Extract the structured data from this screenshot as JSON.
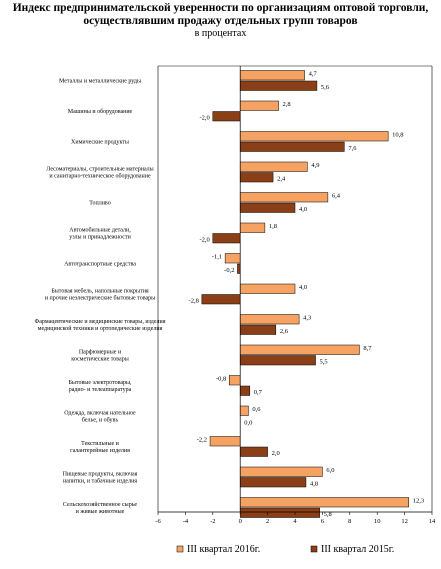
{
  "chart_data": {
    "type": "bar",
    "orientation": "horizontal",
    "title": "Индекс предпринимательской уверенности по организациям оптовой торговли, осуществлявшим продажу отдельных групп товаров",
    "subtitle": "в процентах",
    "categories": [
      [
        "Металлы и металлические руды"
      ],
      [
        "Машины и оборудование"
      ],
      [
        "Химические продукты"
      ],
      [
        "Лесоматериалы, строительные материалы",
        "и санитарно-техническое оборудование"
      ],
      [
        "Топливо"
      ],
      [
        "Автомобильные детали,",
        "узлы и принадлежности"
      ],
      [
        "Автотранспортные средства"
      ],
      [
        "Бытовая мебель, напольные покрытия",
        "и прочие неэлектрические бытовые товары"
      ],
      [
        "Фармацевтические и медицинские товары, изделия",
        "медицинской техники и ортопедические изделия"
      ],
      [
        "Парфюмерные и",
        "косметические товары"
      ],
      [
        "Бытовые электротовары,",
        "радио- и телеаппаратура"
      ],
      [
        "Одежда, включая нательное",
        "белье, и обувь"
      ],
      [
        "Текстильные и",
        "галантерейные изделия"
      ],
      [
        "Пищевые продукты, включая",
        "напитки, и табачные изделия"
      ],
      [
        "Сельскохозяйственное сырье",
        "и живые животные"
      ]
    ],
    "series": [
      {
        "name": "III квартал 2016г.",
        "color": "#f5a263",
        "values": [
          4.7,
          2.8,
          10.8,
          4.9,
          6.4,
          1.8,
          -1.1,
          4.0,
          4.3,
          8.7,
          -0.8,
          0.6,
          -2.2,
          6.0,
          12.3
        ]
      },
      {
        "name": "III квартал 2015г.",
        "color": "#8b3f17",
        "values": [
          5.6,
          -2.0,
          7.6,
          2.4,
          4.0,
          -2.0,
          -0.2,
          -2.8,
          2.6,
          5.5,
          0.7,
          0.0,
          2.0,
          4.8,
          5.8
        ]
      }
    ],
    "value_labels": [
      [
        "4,7",
        "2,8",
        "10,8",
        "4,9",
        "6,4",
        "1,8",
        "-1,1",
        "4,0",
        "4,3",
        "8,7",
        "-0,8",
        "0,6",
        "-2,2",
        "6,0",
        "12,3"
      ],
      [
        "5,6",
        "-2,0",
        "7,6",
        "2,4",
        "4,0",
        "-2,0",
        "-0,2",
        "-2,8",
        "2,6",
        "5,5",
        "0,7",
        "0,0",
        "2,0",
        "4,8",
        "5,8"
      ]
    ],
    "xlim": [
      -6,
      14
    ],
    "xticks": [
      -6,
      -4,
      -2,
      0,
      2,
      4,
      6,
      8,
      10,
      12,
      14
    ],
    "grid": false,
    "legend_position": "bottom"
  }
}
